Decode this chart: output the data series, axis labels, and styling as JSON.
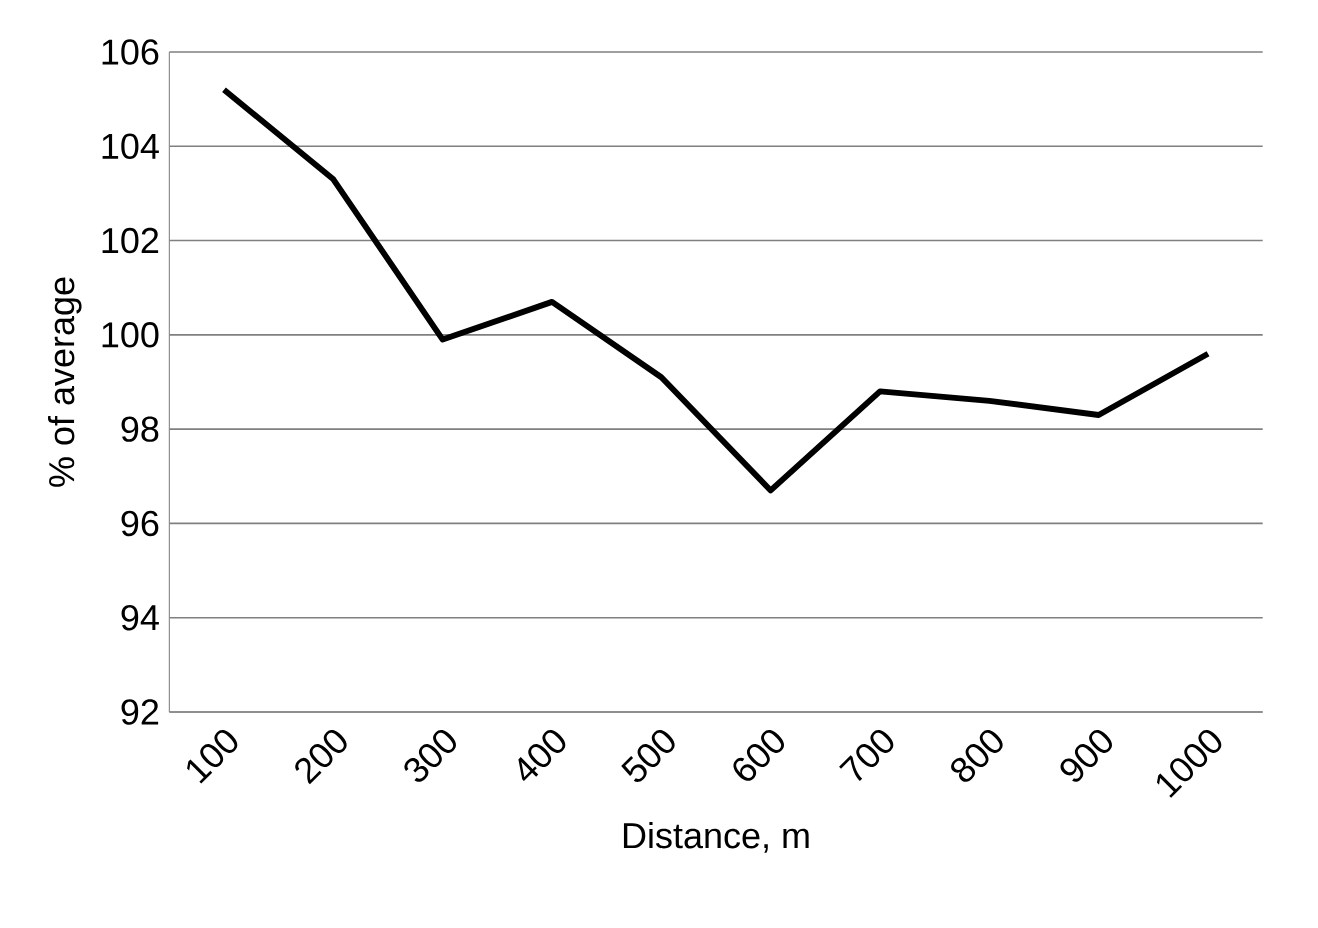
{
  "chart_data": {
    "type": "line",
    "xlabel": "Distance, m",
    "ylabel": "% of average",
    "categories": [
      "100",
      "200",
      "300",
      "400",
      "500",
      "600",
      "700",
      "800",
      "900",
      "1000"
    ],
    "series": [
      {
        "color": "#000000",
        "values": [
          105.2,
          103.3,
          99.9,
          100.7,
          99.1,
          96.7,
          98.8,
          98.6,
          98.3,
          99.6
        ]
      }
    ],
    "ylim": [
      92,
      106
    ],
    "yticks": [
      92,
      94,
      96,
      98,
      100,
      102,
      104,
      106
    ],
    "grid": "y",
    "marker": "none",
    "line_style": "solid"
  }
}
